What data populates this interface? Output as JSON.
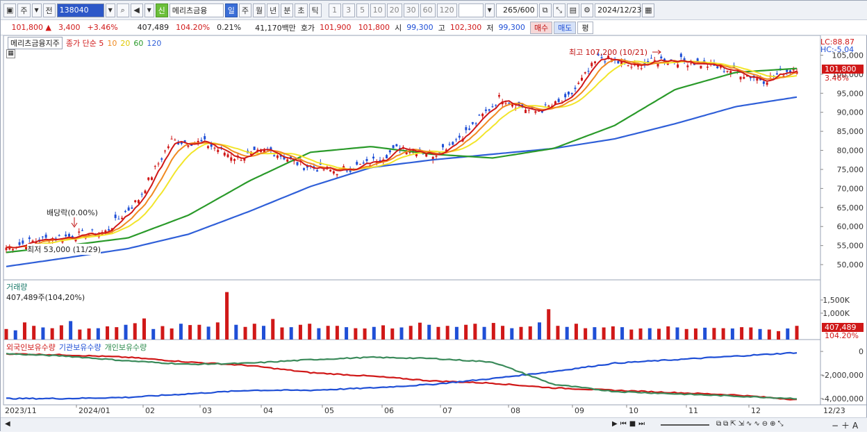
{
  "toolbar": {
    "market": "주",
    "view": "전",
    "code": "138040",
    "name": "메리츠금융",
    "new_badge": "신",
    "periods": [
      "일",
      "주",
      "월",
      "년",
      "분",
      "초",
      "틱"
    ],
    "selected_period": "일",
    "intervals": [
      "1",
      "3",
      "5",
      "10",
      "20",
      "30",
      "60",
      "120"
    ],
    "count": "265",
    "count_max": "/600",
    "date": "2024/12/23"
  },
  "quote": {
    "price": "101,800",
    "change": "3,400",
    "change_pct": "+3.46%",
    "volume": "407,489",
    "vol_pct": "104.20%",
    "turnover": "0.21%",
    "amount": "41,170백만",
    "bid_label": "호가",
    "ask": "101,900",
    "bid": "101,800",
    "open_label": "시",
    "open": "99,300",
    "high_label": "고",
    "high": "102,300",
    "low_label": "저",
    "low": "99,300",
    "buy_btn": "매수",
    "sell_btn": "매도",
    "eval_btn": "평"
  },
  "chart_data": [
    {
      "type": "candlestick",
      "title": "메리츠금융지주",
      "legend": [
        "종가 단순 5",
        "10",
        "20",
        "60",
        "120"
      ],
      "x": [
        "2023/11",
        "2024/01",
        "02",
        "03",
        "04",
        "05",
        "06",
        "07",
        "08",
        "09",
        "10",
        "11",
        "12",
        "12/23"
      ],
      "close_series": [
        54500,
        56500,
        57500,
        58500,
        67000,
        82500,
        82000,
        78000,
        80000,
        76000,
        74500,
        76500,
        81000,
        79000,
        85000,
        94000,
        90000,
        93000,
        104500,
        102000,
        104000,
        103000,
        101000,
        98500,
        101800
      ],
      "ma120": [
        49500,
        51800,
        54200,
        58000,
        64000,
        70500,
        75500,
        77500,
        79000,
        80500,
        83000,
        87000,
        91500,
        94000
      ],
      "ma60": [
        53200,
        55000,
        57000,
        63000,
        72000,
        79500,
        81000,
        79000,
        78000,
        80500,
        86500,
        96000,
        100500,
        101500
      ],
      "ylim": [
        46000,
        108000
      ],
      "yticks": [
        "105,000",
        "100,000",
        "95,000",
        "90,000",
        "85,000",
        "80,000",
        "75,000",
        "70,000",
        "65,000",
        "60,000",
        "55,000",
        "50,000"
      ],
      "annotations": {
        "high": "최고 107,200 (10/21)",
        "low": "최저 53,000 (11/29)",
        "dividend": "배당락(0.00%)"
      },
      "lc": "LC:88.87",
      "hc": "HC:-5.04",
      "last_price_tag": "101,800",
      "last_pct_tag": "3.46%"
    },
    {
      "type": "bar",
      "title": "거래량",
      "subtitle": "407,489주(104,20%)",
      "yticks": [
        "1,500K",
        "1,000K"
      ],
      "last_tag": "407,489",
      "last_pct": "104.20%",
      "values": [
        400,
        350,
        650,
        520,
        460,
        430,
        540,
        700,
        380,
        420,
        430,
        500,
        470,
        560,
        620,
        800,
        400,
        510,
        420,
        600,
        550,
        560,
        490,
        650,
        1800,
        560,
        480,
        600,
        520,
        780,
        460,
        470,
        560,
        600,
        430,
        520,
        520,
        470,
        430,
        420,
        480,
        540,
        420,
        460,
        520,
        640,
        560,
        480,
        520,
        480,
        560,
        600,
        480,
        630,
        520,
        430,
        480,
        500,
        650,
        1150,
        520,
        480,
        600,
        430,
        470,
        460,
        500,
        470,
        380,
        420,
        430,
        410,
        500,
        460,
        400,
        420,
        450,
        440,
        430,
        420,
        470,
        460,
        400,
        380,
        320,
        420,
        520
      ]
    },
    {
      "type": "line",
      "legend": [
        "외국인보유수량",
        "기관보유수량",
        "개인보유수량"
      ],
      "yticks": [
        "0",
        "-2,000,000",
        "-4,000,000"
      ],
      "series": [
        {
          "name": "외국인보유수량",
          "values": [
            -200000,
            -300000,
            -500000,
            -900000,
            -1200000,
            -1800000,
            -2100000,
            -2500000,
            -2700000,
            -3100000,
            -3300000,
            -3500000,
            -3700000,
            -4100000
          ]
        },
        {
          "name": "기관보유수량",
          "values": [
            -4000000,
            -4000000,
            -3900000,
            -3600000,
            -3300000,
            -3300000,
            -3100000,
            -2800000,
            -2300000,
            -1700000,
            -1000000,
            -700000,
            -400000,
            -100000
          ]
        },
        {
          "name": "개인보유수량",
          "values": [
            -200000,
            -400000,
            -800000,
            -1100000,
            -1000000,
            -700000,
            -500000,
            -600000,
            -900000,
            -2800000,
            -3400000,
            -3600000,
            -3800000,
            -4000000
          ]
        }
      ]
    }
  ],
  "colors": {
    "red": "#d01818",
    "blue": "#1f4fd6",
    "ma5": "#d01818",
    "ma10": "#f08a20",
    "ma20": "#f2e52a",
    "ma60": "#2a9a2a",
    "ma120": "#2f5fd8",
    "green": "#3a9a5a"
  }
}
